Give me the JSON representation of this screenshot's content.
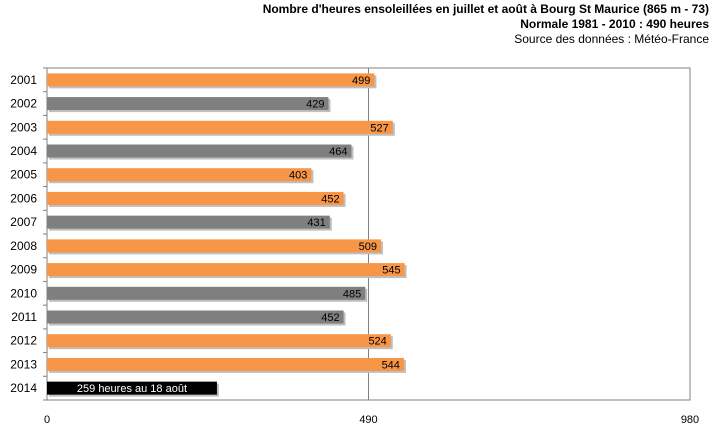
{
  "chart_data": {
    "type": "bar",
    "orientation": "horizontal",
    "title": "Nombre d'heures ensoleillées en juillet et août à Bourg St Maurice (865 m - 73)",
    "subtitle": "Normale 1981 - 2010 : 490 heures",
    "source": "Source des données : Météo-France",
    "categories": [
      "2001",
      "2002",
      "2003",
      "2004",
      "2005",
      "2006",
      "2007",
      "2008",
      "2009",
      "2010",
      "2011",
      "2012",
      "2013",
      "2014"
    ],
    "values": [
      499,
      429,
      527,
      464,
      403,
      452,
      431,
      509,
      545,
      485,
      452,
      524,
      544,
      259
    ],
    "bar_labels": [
      "499",
      "429",
      "527",
      "464",
      "403",
      "452",
      "431",
      "509",
      "545",
      "485",
      "452",
      "524",
      "544",
      "259 heures au 18 août"
    ],
    "bar_colors": [
      "#f79646",
      "#7f7f7f",
      "#f79646",
      "#7f7f7f",
      "#f79646",
      "#f79646",
      "#7f7f7f",
      "#f79646",
      "#f79646",
      "#7f7f7f",
      "#7f7f7f",
      "#f79646",
      "#f79646",
      "#000000"
    ],
    "label_colors": [
      "#000000",
      "#000000",
      "#000000",
      "#000000",
      "#000000",
      "#000000",
      "#000000",
      "#000000",
      "#000000",
      "#000000",
      "#000000",
      "#000000",
      "#000000",
      "#ffffff"
    ],
    "xlim": [
      0,
      980
    ],
    "xticks": [
      "0",
      "490",
      "980"
    ],
    "grid": true
  }
}
